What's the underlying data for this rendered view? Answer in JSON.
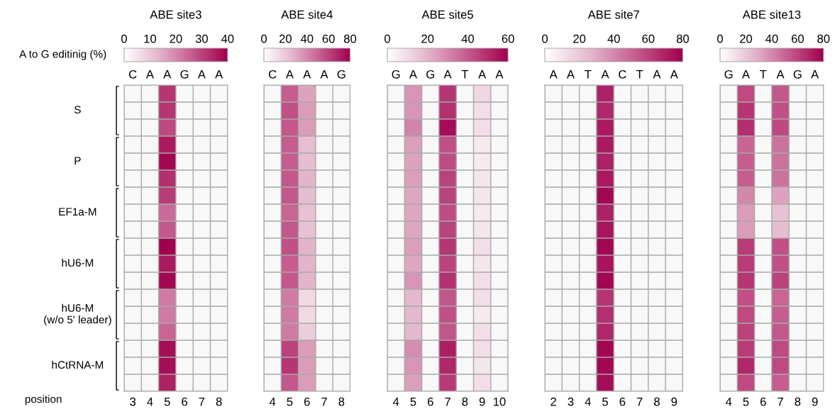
{
  "chart_data": [
    {
      "type": "heatmap",
      "title": "ABE site3",
      "clabel": "A to G editinig (%)",
      "xlabel": "position",
      "clim": [
        0,
        40
      ],
      "cticks": [
        0,
        10,
        20,
        30,
        40
      ],
      "grid": true,
      "categories": [
        "3",
        "4",
        "5",
        "6",
        "7",
        "8"
      ],
      "annotations": [
        "C",
        "A",
        "A",
        "G",
        "A",
        "A"
      ],
      "y_categories": [
        null,
        "S",
        null,
        null,
        "P",
        null,
        null,
        "EF1a-M",
        null,
        null,
        "hU6-M",
        null,
        null,
        "hU6-M\n(w/o 5' leader)",
        null,
        null,
        "hCtRNA-M",
        null
      ],
      "cells": [
        [
          null,
          null,
          32,
          null,
          null,
          null
        ],
        [
          null,
          null,
          32,
          null,
          null,
          null
        ],
        [
          null,
          null,
          29,
          null,
          null,
          null
        ],
        [
          null,
          null,
          36,
          null,
          null,
          null
        ],
        [
          null,
          null,
          39,
          null,
          null,
          null
        ],
        [
          null,
          null,
          33,
          null,
          null,
          null
        ],
        [
          null,
          null,
          31,
          null,
          null,
          null
        ],
        [
          null,
          null,
          24,
          null,
          null,
          null
        ],
        [
          null,
          null,
          27,
          null,
          null,
          null
        ],
        [
          null,
          null,
          40,
          null,
          null,
          null
        ],
        [
          null,
          null,
          36,
          null,
          null,
          null
        ],
        [
          null,
          null,
          39,
          null,
          null,
          null
        ],
        [
          null,
          null,
          22,
          null,
          null,
          null
        ],
        [
          null,
          null,
          22,
          null,
          null,
          null
        ],
        [
          null,
          null,
          25,
          null,
          null,
          null
        ],
        [
          null,
          null,
          38,
          null,
          null,
          null
        ],
        [
          null,
          null,
          38,
          null,
          null,
          null
        ],
        [
          null,
          null,
          35,
          null,
          null,
          null
        ]
      ]
    },
    {
      "type": "heatmap",
      "title": "ABE site4",
      "clim": [
        0,
        80
      ],
      "cticks": [
        0,
        20,
        40,
        60,
        80
      ],
      "grid": true,
      "categories": [
        "4",
        "5",
        "6",
        "7",
        "8"
      ],
      "annotations": [
        "C",
        "A",
        "A",
        "A",
        "G"
      ],
      "y_categories": [
        null,
        null,
        null,
        null,
        null,
        null,
        null,
        null,
        null,
        null,
        null,
        null,
        null,
        null,
        null,
        null,
        null,
        null
      ],
      "cells": [
        [
          null,
          52,
          32,
          null,
          null
        ],
        [
          null,
          56,
          34,
          null,
          null
        ],
        [
          null,
          54,
          34,
          null,
          null
        ],
        [
          null,
          52,
          24,
          null,
          null
        ],
        [
          null,
          52,
          24,
          null,
          null
        ],
        [
          null,
          54,
          27,
          null,
          null
        ],
        [
          null,
          54,
          24,
          null,
          null
        ],
        [
          null,
          50,
          22,
          null,
          null
        ],
        [
          null,
          54,
          22,
          null,
          null
        ],
        [
          null,
          56,
          27,
          null,
          null
        ],
        [
          null,
          52,
          27,
          null,
          null
        ],
        [
          null,
          54,
          27,
          null,
          null
        ],
        [
          null,
          44,
          14,
          null,
          null
        ],
        [
          null,
          44,
          14,
          null,
          null
        ],
        [
          null,
          44,
          18,
          null,
          null
        ],
        [
          null,
          60,
          34,
          null,
          null
        ],
        [
          null,
          64,
          34,
          null,
          null
        ],
        [
          null,
          54,
          34,
          null,
          null
        ]
      ]
    },
    {
      "type": "heatmap",
      "title": "ABE site5",
      "clim": [
        0,
        60
      ],
      "cticks": [
        0,
        20,
        40,
        60
      ],
      "grid": true,
      "categories": [
        "4",
        "5",
        "6",
        "7",
        "8",
        "9",
        "10"
      ],
      "annotations": [
        "G",
        "A",
        "G",
        "A",
        "T",
        "A",
        "A"
      ],
      "y_categories": [
        null,
        null,
        null,
        null,
        null,
        null,
        null,
        null,
        null,
        null,
        null,
        null,
        null,
        null,
        null,
        null,
        null,
        null
      ],
      "cells": [
        [
          null,
          27,
          null,
          48,
          null,
          11,
          null
        ],
        [
          null,
          27,
          null,
          49,
          null,
          9,
          null
        ],
        [
          null,
          31,
          null,
          57,
          null,
          9,
          null
        ],
        [
          null,
          25,
          null,
          42,
          null,
          6,
          null
        ],
        [
          null,
          24,
          null,
          43,
          null,
          6,
          null
        ],
        [
          null,
          25,
          null,
          45,
          null,
          7,
          null
        ],
        [
          null,
          23,
          null,
          45,
          null,
          7,
          null
        ],
        [
          null,
          23,
          null,
          43,
          null,
          6,
          null
        ],
        [
          null,
          23,
          null,
          45,
          null,
          7,
          null
        ],
        [
          null,
          25,
          null,
          48,
          null,
          9,
          null
        ],
        [
          null,
          23,
          null,
          45,
          null,
          7,
          null
        ],
        [
          null,
          27,
          null,
          49,
          null,
          9,
          null
        ],
        [
          null,
          19,
          null,
          41,
          null,
          9,
          null
        ],
        [
          null,
          19,
          null,
          42,
          null,
          6,
          null
        ],
        [
          null,
          19,
          null,
          41,
          null,
          9,
          null
        ],
        [
          null,
          29,
          null,
          53,
          null,
          9,
          null
        ],
        [
          null,
          27,
          null,
          51,
          null,
          7,
          null
        ],
        [
          null,
          25,
          null,
          47,
          null,
          9,
          null
        ]
      ]
    },
    {
      "type": "heatmap",
      "title": "ABE site7",
      "clim": [
        0,
        80
      ],
      "cticks": [
        0,
        20,
        40,
        60,
        80
      ],
      "grid": true,
      "categories": [
        "2",
        "3",
        "4",
        "5",
        "6",
        "7",
        "8",
        "9"
      ],
      "annotations": [
        "A",
        "A",
        "T",
        "A",
        "C",
        "T",
        "A",
        "A"
      ],
      "y_categories": [
        null,
        null,
        null,
        null,
        null,
        null,
        null,
        null,
        null,
        null,
        null,
        null,
        null,
        null,
        null,
        null,
        null,
        null
      ],
      "cells": [
        [
          null,
          null,
          null,
          70,
          null,
          null,
          null,
          null
        ],
        [
          null,
          null,
          null,
          68,
          null,
          null,
          null,
          null
        ],
        [
          null,
          null,
          null,
          72,
          null,
          null,
          null,
          null
        ],
        [
          null,
          null,
          null,
          72,
          null,
          null,
          null,
          null
        ],
        [
          null,
          null,
          null,
          70,
          null,
          null,
          null,
          null
        ],
        [
          null,
          null,
          null,
          72,
          null,
          null,
          null,
          null
        ],
        [
          null,
          null,
          null,
          78,
          null,
          null,
          null,
          null
        ],
        [
          null,
          null,
          null,
          70,
          null,
          null,
          null,
          null
        ],
        [
          null,
          null,
          null,
          74,
          null,
          null,
          null,
          null
        ],
        [
          null,
          null,
          null,
          78,
          null,
          null,
          null,
          null
        ],
        [
          null,
          null,
          null,
          74,
          null,
          null,
          null,
          null
        ],
        [
          null,
          null,
          null,
          78,
          null,
          null,
          null,
          null
        ],
        [
          null,
          null,
          null,
          64,
          null,
          null,
          null,
          null
        ],
        [
          null,
          null,
          null,
          66,
          null,
          null,
          null,
          null
        ],
        [
          null,
          null,
          null,
          68,
          null,
          null,
          null,
          null
        ],
        [
          null,
          null,
          null,
          78,
          null,
          null,
          null,
          null
        ],
        [
          null,
          null,
          null,
          78,
          null,
          null,
          null,
          null
        ],
        [
          null,
          null,
          null,
          76,
          null,
          null,
          null,
          null
        ]
      ]
    },
    {
      "type": "heatmap",
      "title": "ABE site13",
      "clim": [
        0,
        80
      ],
      "cticks": [
        0,
        20,
        40,
        60,
        80
      ],
      "grid": true,
      "categories": [
        "4",
        "5",
        "6",
        "7",
        "8",
        "9"
      ],
      "annotations": [
        "G",
        "A",
        "T",
        "A",
        "G",
        "A"
      ],
      "y_categories": [
        null,
        null,
        null,
        null,
        null,
        null,
        null,
        null,
        null,
        null,
        null,
        null,
        null,
        null,
        null,
        null,
        null,
        null
      ],
      "cells": [
        [
          null,
          58,
          null,
          54,
          null,
          null
        ],
        [
          null,
          64,
          null,
          56,
          null,
          null
        ],
        [
          null,
          66,
          null,
          58,
          null,
          null
        ],
        [
          null,
          50,
          null,
          46,
          null,
          null
        ],
        [
          null,
          52,
          null,
          46,
          null,
          null
        ],
        [
          null,
          52,
          null,
          46,
          null,
          null
        ],
        [
          null,
          40,
          null,
          32,
          null,
          null
        ],
        [
          null,
          34,
          null,
          22,
          null,
          null
        ],
        [
          null,
          34,
          null,
          24,
          null,
          null
        ],
        [
          null,
          62,
          null,
          56,
          null,
          null
        ],
        [
          null,
          62,
          null,
          56,
          null,
          null
        ],
        [
          null,
          64,
          null,
          60,
          null,
          null
        ],
        [
          null,
          56,
          null,
          50,
          null,
          null
        ],
        [
          null,
          58,
          null,
          52,
          null,
          null
        ],
        [
          null,
          60,
          null,
          54,
          null,
          null
        ],
        [
          null,
          62,
          null,
          58,
          null,
          null
        ],
        [
          null,
          68,
          null,
          58,
          null,
          null
        ],
        [
          null,
          58,
          null,
          52,
          null,
          null
        ]
      ]
    }
  ]
}
